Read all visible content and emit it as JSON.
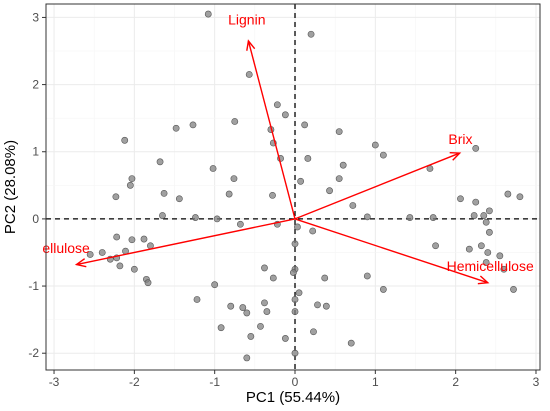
{
  "chart_data": {
    "type": "scatter",
    "subtype": "pca-biplot",
    "title": "",
    "xlabel": "PC1 (55.44%)",
    "ylabel": "PC2 (28.08%)",
    "xlim": [
      -3.1,
      3.05
    ],
    "ylim": [
      -2.25,
      3.2
    ],
    "xticks": [
      -3,
      -2,
      -1,
      0,
      1,
      2,
      3
    ],
    "yticks": [
      -2,
      -1,
      0,
      1,
      2,
      3
    ],
    "xtick_labels": [
      "-3",
      "-2",
      "-1",
      "0",
      "1",
      "2",
      "3"
    ],
    "ytick_labels": [
      "-2",
      "-1",
      "0",
      "1",
      "2",
      "3"
    ],
    "grid": true,
    "reference_lines": [
      {
        "axis": "x",
        "value": 0,
        "style": "dashed"
      },
      {
        "axis": "y",
        "value": 0,
        "style": "dashed"
      }
    ],
    "colors": {
      "points": "#808080",
      "vectors": "#ff0000",
      "grid": "#ebebeb",
      "panel_border": "#333333"
    },
    "points": [
      [
        -1.08,
        3.05
      ],
      [
        0.2,
        2.75
      ],
      [
        -0.57,
        2.15
      ],
      [
        -0.22,
        1.7
      ],
      [
        -0.12,
        1.55
      ],
      [
        0.12,
        1.4
      ],
      [
        -0.3,
        1.33
      ],
      [
        -0.75,
        1.45
      ],
      [
        -1.48,
        1.35
      ],
      [
        -1.27,
        1.4
      ],
      [
        -2.12,
        1.17
      ],
      [
        -0.27,
        1.13
      ],
      [
        -0.18,
        0.9
      ],
      [
        0.16,
        0.9
      ],
      [
        0.55,
        1.3
      ],
      [
        0.6,
        0.8
      ],
      [
        0.55,
        0.6
      ],
      [
        1.0,
        1.1
      ],
      [
        1.1,
        0.95
      ],
      [
        1.68,
        0.75
      ],
      [
        2.25,
        1.05
      ],
      [
        -1.68,
        0.85
      ],
      [
        -1.02,
        0.75
      ],
      [
        -0.76,
        0.6
      ],
      [
        -2.03,
        0.6
      ],
      [
        -2.05,
        0.5
      ],
      [
        -1.63,
        0.38
      ],
      [
        -0.82,
        0.37
      ],
      [
        0.07,
        0.56
      ],
      [
        0.43,
        0.42
      ],
      [
        -2.23,
        0.33
      ],
      [
        -0.28,
        0.35
      ],
      [
        -1.44,
        0.3
      ],
      [
        0.72,
        0.2
      ],
      [
        2.06,
        0.3
      ],
      [
        2.25,
        0.25
      ],
      [
        2.42,
        0.12
      ],
      [
        2.65,
        0.37
      ],
      [
        2.8,
        0.33
      ],
      [
        -1.65,
        0.05
      ],
      [
        -1.24,
        0.02
      ],
      [
        -0.97,
        0.0
      ],
      [
        0.9,
        0.03
      ],
      [
        1.43,
        0.02
      ],
      [
        1.72,
        0.02
      ],
      [
        2.23,
        0.05
      ],
      [
        2.35,
        0.05
      ],
      [
        2.38,
        -0.05
      ],
      [
        2.42,
        -0.2
      ],
      [
        -0.68,
        -0.08
      ],
      [
        -0.22,
        -0.08
      ],
      [
        0.03,
        -0.12
      ],
      [
        0.22,
        -0.18
      ],
      [
        0.0,
        -0.37
      ],
      [
        -2.22,
        -0.27
      ],
      [
        -2.03,
        -0.31
      ],
      [
        -1.88,
        -0.3
      ],
      [
        -1.8,
        -0.4
      ],
      [
        -2.11,
        -0.48
      ],
      [
        -2.22,
        -0.58
      ],
      [
        -2.4,
        -0.5
      ],
      [
        -2.55,
        -0.53
      ],
      [
        -2.3,
        -0.6
      ],
      [
        -2.18,
        -0.7
      ],
      [
        -2.0,
        -0.75
      ],
      [
        -1.85,
        -0.9
      ],
      [
        -1.83,
        -0.95
      ],
      [
        1.75,
        -0.4
      ],
      [
        2.17,
        -0.45
      ],
      [
        2.32,
        -0.4
      ],
      [
        2.4,
        -0.5
      ],
      [
        2.55,
        -0.55
      ],
      [
        2.38,
        -0.65
      ],
      [
        2.6,
        -0.75
      ],
      [
        2.72,
        -1.05
      ],
      [
        -0.38,
        -0.73
      ],
      [
        -0.27,
        -0.88
      ],
      [
        0.0,
        -0.75
      ],
      [
        -0.02,
        -0.8
      ],
      [
        0.37,
        -0.88
      ],
      [
        0.9,
        -0.85
      ],
      [
        1.1,
        -1.05
      ],
      [
        -1.0,
        -0.98
      ],
      [
        -1.22,
        -1.2
      ],
      [
        -0.8,
        -1.3
      ],
      [
        -0.65,
        -1.32
      ],
      [
        -0.6,
        -1.4
      ],
      [
        -0.38,
        -1.25
      ],
      [
        -0.35,
        -1.38
      ],
      [
        -0.43,
        -1.6
      ],
      [
        -0.55,
        -1.75
      ],
      [
        0.05,
        -1.1
      ],
      [
        0.0,
        -1.2
      ],
      [
        0.0,
        -1.38
      ],
      [
        0.28,
        -1.28
      ],
      [
        0.39,
        -1.3
      ],
      [
        0.23,
        -1.68
      ],
      [
        -0.92,
        -1.62
      ],
      [
        -0.6,
        -2.07
      ],
      [
        0.7,
        -1.85
      ],
      [
        0.0,
        -2.0
      ],
      [
        -0.12,
        -1.78
      ]
    ],
    "loadings": [
      {
        "name": "Lignin",
        "x": -0.58,
        "y": 2.65,
        "label": "Lignin"
      },
      {
        "name": "Brix",
        "x": 2.05,
        "y": 0.98,
        "label": "Brix"
      },
      {
        "name": "Hemicellulose",
        "x": 2.4,
        "y": -0.95,
        "label": "Hemicellulose"
      },
      {
        "name": "Cellulose",
        "x": -2.72,
        "y": -0.68,
        "label": "ellulose"
      }
    ],
    "loading_label_positions": {
      "Lignin": [
        -0.6,
        2.95
      ],
      "Brix": [
        2.06,
        1.17
      ],
      "Hemicellulose": [
        2.43,
        -0.72
      ],
      "Cellulose": [
        -2.85,
        -0.45
      ]
    }
  }
}
